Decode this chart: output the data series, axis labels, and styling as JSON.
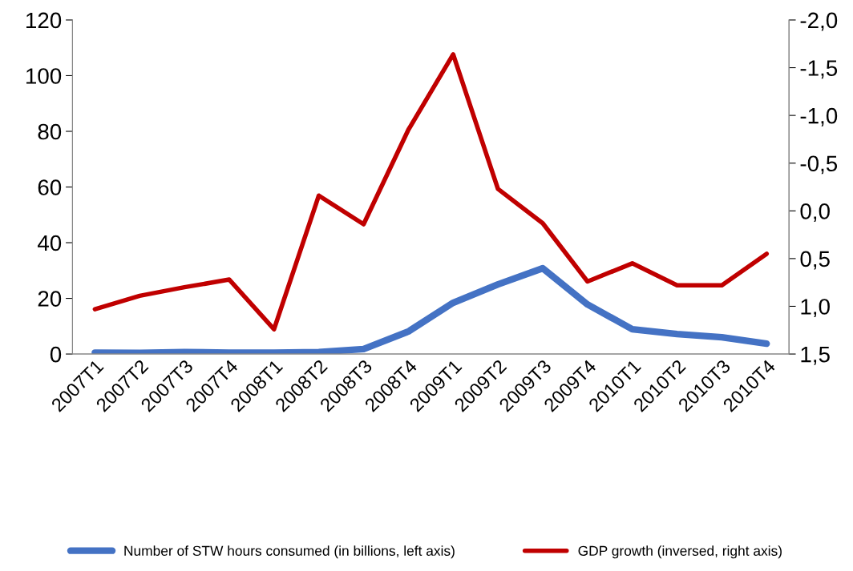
{
  "chart_data": {
    "type": "line",
    "categories": [
      "2007T1",
      "2007T2",
      "2007T3",
      "2007T4",
      "2008T1",
      "2008T2",
      "2008T3",
      "2008T4",
      "2009T1",
      "2009T2",
      "2009T3",
      "2009T4",
      "2010T1",
      "2010T2",
      "2010T3",
      "2010T4"
    ],
    "series": [
      {
        "name": "Number of STW hours consumed (in billions, left axis)",
        "color": "#4472c4",
        "values": [
          0.5,
          0.4,
          0.7,
          0.5,
          0.5,
          0.7,
          1.8,
          8.1,
          18.4,
          25,
          30.8,
          17.8,
          8.9,
          7.2,
          6,
          3.7
        ]
      },
      {
        "name": "GDP growth (inversed, right axis)",
        "color": "#c00000",
        "axis": "y2",
        "values": [
          1.03,
          0.89,
          0.8,
          0.72,
          1.24,
          -0.16,
          0.14,
          -0.85,
          -1.64,
          -0.23,
          0.13,
          0.74,
          0.55,
          0.78,
          0.78,
          0.45
        ]
      }
    ],
    "ylim": [
      0,
      120
    ],
    "yticks": [
      0,
      20,
      40,
      60,
      80,
      100,
      120
    ],
    "y2lim": [
      1.5,
      -2.0
    ],
    "y2ticks": [
      {
        "value": -2.0,
        "label": "-2,0"
      },
      {
        "value": -1.5,
        "label": "-1,5"
      },
      {
        "value": -1.0,
        "label": "-1,0"
      },
      {
        "value": -0.5,
        "label": "-0,5"
      },
      {
        "value": 0,
        "label": "0,0"
      },
      {
        "value": 0.5,
        "label": "0,5"
      },
      {
        "value": 1.0,
        "label": "1,0"
      },
      {
        "value": 1.5,
        "label": "1,5"
      }
    ],
    "grid": false,
    "legend": "bottom",
    "marker": "none",
    "line_style": "solid"
  }
}
